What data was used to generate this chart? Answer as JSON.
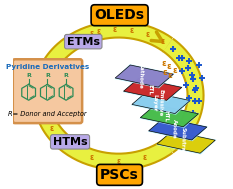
{
  "bg_color": "#ffffff",
  "oled_label": "OLEDs",
  "oled_label_bg": "#FFA500",
  "etm_label": "ETMs",
  "etm_label_bg": "#B8A8E8",
  "htm_label": "HTMs",
  "htm_label_bg": "#B8A8E8",
  "psc_label": "PSCs",
  "psc_label_bg": "#FFA500",
  "box_bg": "#F5C8A0",
  "box_border": "#D4904A",
  "box_title": "Pyridine Derivatives",
  "box_subtitle": "R= Donor and Acceptor",
  "box_title_color": "#1A6BBB",
  "molecule_color": "#2E8B57",
  "layers": [
    {
      "label": "Cathode",
      "color": "#8A7FC8",
      "border": "#ACA0E0"
    },
    {
      "label": "ETL",
      "color": "#CC2222",
      "border": "#EE4444"
    },
    {
      "label": "Emissive\nLayer",
      "color": "#88CCEE",
      "border": "#AADDFF"
    },
    {
      "label": "HTL",
      "color": "#44BB44",
      "border": "#66DD66"
    },
    {
      "label": "Anode",
      "color": "#3355CC",
      "border": "#5577EE"
    },
    {
      "label": "Substrate",
      "color": "#DDCC00",
      "border": "#FFEE22"
    }
  ],
  "arrow_color": "#E8F040",
  "arrow_edge_color": "#C8A000",
  "dot_color_blue": "#1A55CC",
  "dot_color_orange": "#CC7700",
  "epsilon_color": "#CC7700"
}
